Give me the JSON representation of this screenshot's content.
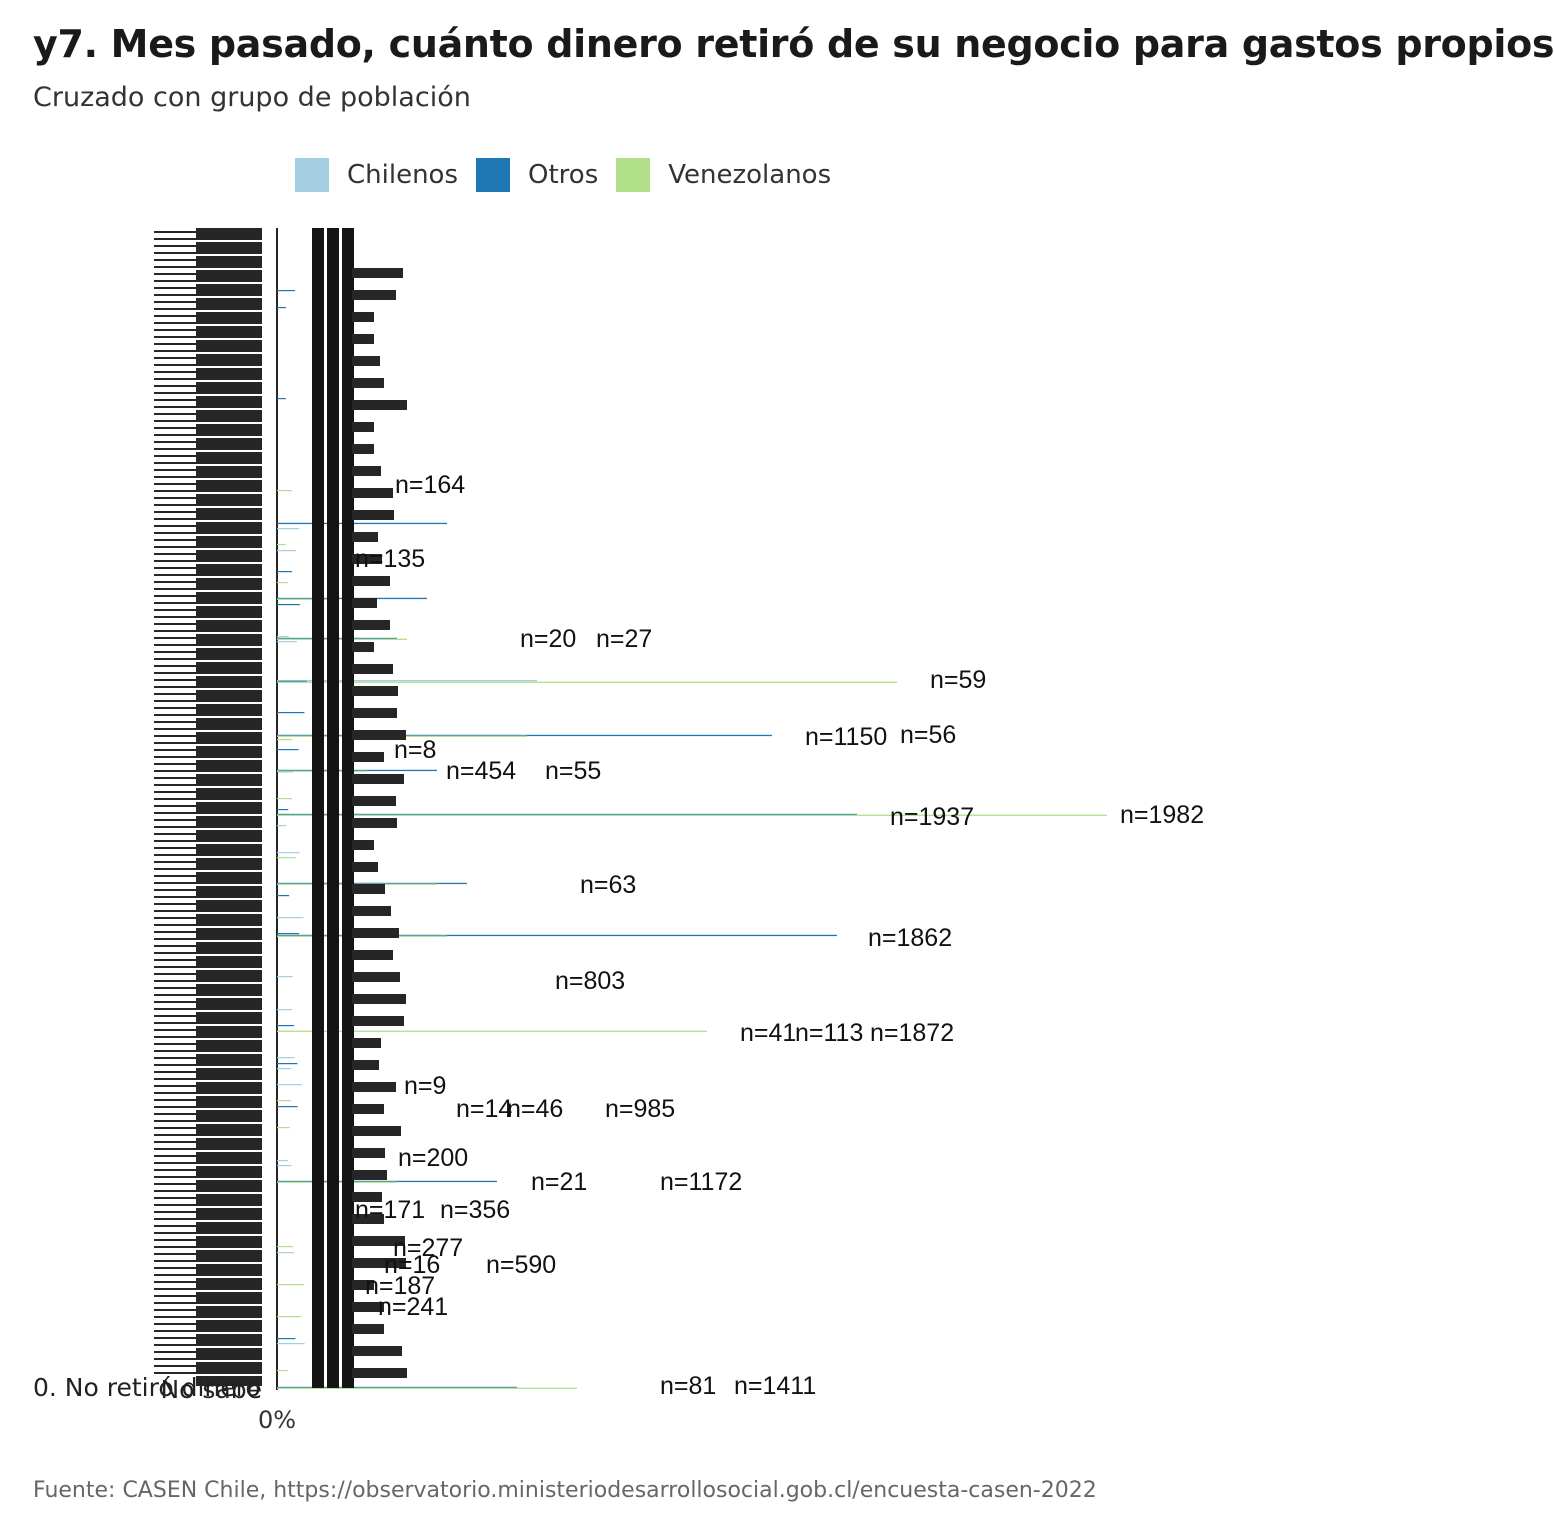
{
  "title": "y7. Mes pasado, cuánto dinero retiró de su negocio para gastos propios",
  "subtitle": "Cruzado con grupo de población",
  "caption": "Fuente: CASEN Chile, https://observatorio.ministeriodesarrollosocial.gob.cl/encuesta-casen-2022",
  "colors": {
    "Chilenos": "#a6cee3",
    "Otros": "#1f78b4",
    "Venezolanos": "#b2df8a"
  },
  "legend": [
    {
      "name": "Chilenos",
      "color": "#a6cee3"
    },
    {
      "name": "Otros",
      "color": "#1f78b4"
    },
    {
      "name": "Venezolanos",
      "color": "#b2df8a"
    }
  ],
  "chart_data": {
    "type": "bar",
    "orientation": "horizontal",
    "x_tick_labels": [
      "0%"
    ],
    "y_tick_labels_legible": [
      "0. No retiró dinero",
      "No sabe"
    ],
    "legend_placement": "top",
    "grid": false,
    "series": [
      {
        "name": "Chilenos"
      },
      {
        "name": "Otros"
      },
      {
        "name": "Venezolanos"
      }
    ],
    "annotations": [
      "n=59",
      "n=56",
      "n=1937",
      "n=1982",
      "n=1150",
      "n=1862",
      "n=1872",
      "n=1172",
      "n=985",
      "n=803",
      "n=454",
      "n=590",
      "n=356",
      "n=277",
      "n=241",
      "n=187",
      "n=200",
      "n=164",
      "n=135",
      "n=113",
      "n=63",
      "n=55",
      "n=46",
      "n=41",
      "n=27",
      "n=21",
      "n=20",
      "n=16",
      "n=14",
      "n=9",
      "n=8",
      "n=81",
      "n=1411",
      "n=171"
    ]
  }
}
